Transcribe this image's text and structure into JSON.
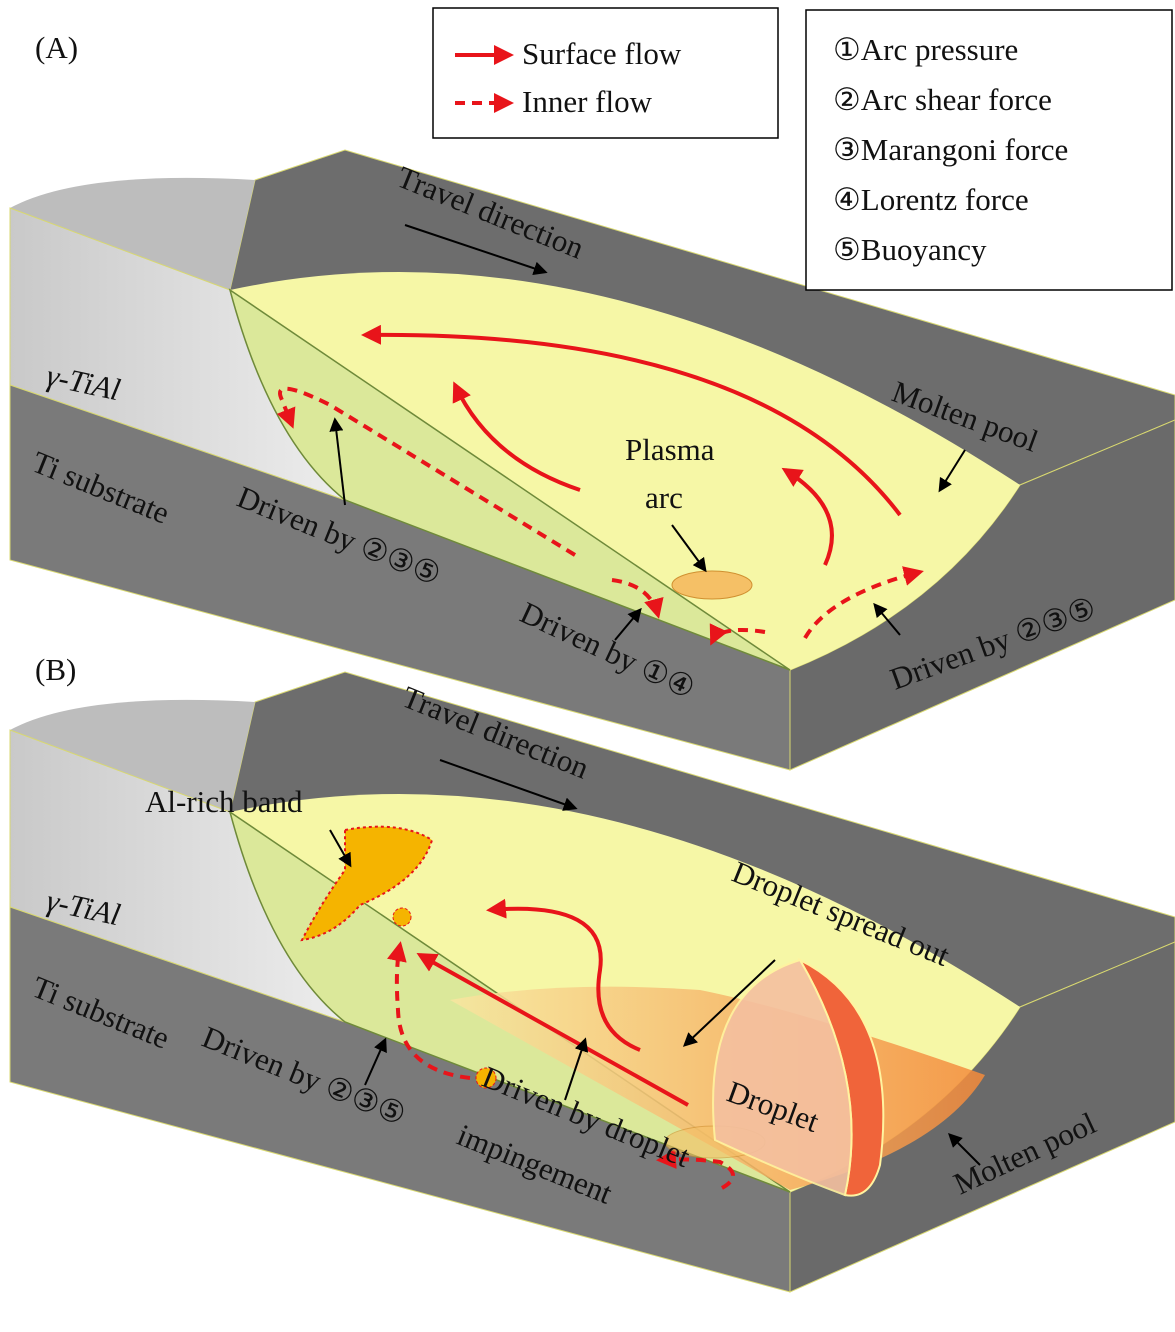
{
  "legend": {
    "surface_flow": "Surface flow",
    "inner_flow": "Inner flow"
  },
  "forces": [
    "①Arc pressure",
    "②Arc shear force",
    "③Marangoni force",
    "④Lorentz force",
    "⑤Buoyancy"
  ],
  "panel_a": {
    "label": "(A)",
    "travel_direction": "Travel direction",
    "layer_top": "γ-TiAl",
    "layer_bottom": "Ti substrate",
    "molten_pool": "Molten pool",
    "plasma_arc": [
      "Plasma",
      "arc"
    ],
    "driven_left": "Driven by ②③⑤",
    "driven_center": "Driven by ①④",
    "driven_right": "Driven by ②③⑤"
  },
  "panel_b": {
    "label": "(B)",
    "travel_direction": "Travel direction",
    "al_rich_band": "Al-rich band",
    "layer_top": "γ-TiAl",
    "layer_bottom": "Ti substrate",
    "droplet_spread": "Droplet spread out",
    "droplet": "Droplet",
    "molten_pool": "Molten pool",
    "driven_left": "Driven by ②③⑤",
    "driven_droplet": [
      "Driven by droplet",
      "impingement"
    ]
  }
}
